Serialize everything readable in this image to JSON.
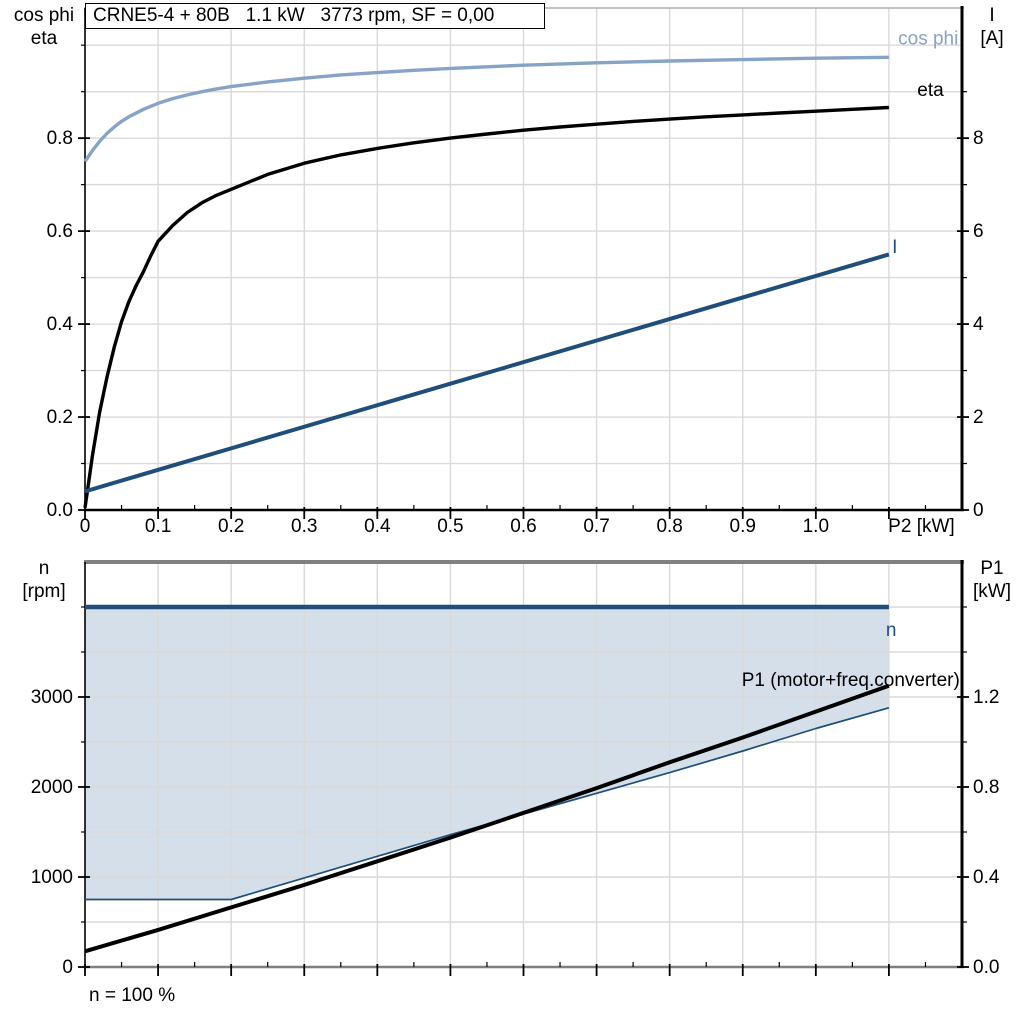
{
  "title_box": {
    "text": "CRNE5-4 + 80B   1.1 kW   3773 rpm, SF = 0,00"
  },
  "axis_corner_labels": {
    "top_left": {
      "line1": "cos phi",
      "line2": "eta"
    },
    "top_right": {
      "line1": "I",
      "line2": "[A]"
    },
    "bottom_left": {
      "line1": "n",
      "line2": "[rpm]"
    },
    "bottom_right": {
      "line1": "P1",
      "line2": "[kW]"
    }
  },
  "annotation": {
    "text": "n = 100 %"
  },
  "colors": {
    "light_blue": "#87A3C5",
    "dark_blue": "#1E4E79",
    "region_fill": "#D4DFEA",
    "grid": "#D9D9D9",
    "gray_border": "#7F7F7F",
    "black": "#000000"
  },
  "chart_data": [
    {
      "type": "line",
      "title": "CRNE5-4 + 80B   1.1 kW   3773 rpm, SF = 0,00",
      "xlabel": "P2 [kW]",
      "ylabel_left": "cos phi / eta",
      "ylabel_right": "I [A]",
      "x_range": [
        0,
        1.2
      ],
      "yl_range": [
        0,
        1.08
      ],
      "yr_range": [
        0,
        10.8
      ],
      "grid_color": "#D9D9D9",
      "grid_x": [
        0.1,
        0.2,
        0.3,
        0.4,
        0.5,
        0.6,
        0.7,
        0.8,
        0.9,
        1.0,
        1.1
      ],
      "grid_yl": [
        0.1,
        0.2,
        0.3,
        0.4,
        0.5,
        0.6,
        0.7,
        0.8,
        0.9,
        1.0
      ],
      "ticks": {
        "x_major": {
          "values": [
            0,
            0.1,
            0.2,
            0.3,
            0.4,
            0.5,
            0.6,
            0.7,
            0.8,
            0.9,
            1.0,
            1.1
          ],
          "labels": [
            "0",
            "0.1",
            "0.2",
            "0.3",
            "0.4",
            "0.5",
            "0.6",
            "0.7",
            "0.8",
            "0.9",
            "1.0",
            ""
          ]
        },
        "x_minor": [
          0.05,
          0.15,
          0.25,
          0.35,
          0.45,
          0.55,
          0.65,
          0.75,
          0.85,
          0.95,
          1.05,
          1.15
        ],
        "yl_major": {
          "values": [
            0,
            0.2,
            0.4,
            0.6,
            0.8
          ],
          "labels": [
            "0.0",
            "0.2",
            "0.4",
            "0.6",
            "0.8"
          ]
        },
        "yl_minor": [
          0.1,
          0.3,
          0.5,
          0.7,
          0.9,
          1.0
        ],
        "yr_major": {
          "values": [
            0,
            2,
            4,
            6,
            8
          ],
          "labels": [
            "0",
            "2",
            "4",
            "6",
            "8"
          ]
        },
        "yr_minor": [
          1,
          3,
          5,
          7,
          9
        ]
      },
      "series": [
        {
          "name": "cos phi",
          "axis": "left",
          "color": "#87A3C5",
          "width": 3.4,
          "points": [
            [
              0,
              0.75
            ],
            [
              0.01,
              0.773
            ],
            [
              0.02,
              0.793
            ],
            [
              0.03,
              0.81
            ],
            [
              0.04,
              0.824
            ],
            [
              0.05,
              0.836
            ],
            [
              0.06,
              0.846
            ],
            [
              0.08,
              0.862
            ],
            [
              0.1,
              0.875
            ],
            [
              0.12,
              0.885
            ],
            [
              0.14,
              0.893
            ],
            [
              0.16,
              0.9
            ],
            [
              0.18,
              0.906
            ],
            [
              0.2,
              0.911
            ],
            [
              0.25,
              0.921
            ],
            [
              0.3,
              0.929
            ],
            [
              0.35,
              0.936
            ],
            [
              0.4,
              0.941
            ],
            [
              0.45,
              0.946
            ],
            [
              0.5,
              0.95
            ],
            [
              0.6,
              0.957
            ],
            [
              0.7,
              0.962
            ],
            [
              0.8,
              0.966
            ],
            [
              0.9,
              0.969
            ],
            [
              1.0,
              0.972
            ],
            [
              1.1,
              0.974
            ]
          ]
        },
        {
          "name": "eta",
          "axis": "left",
          "color": "#000000",
          "width": 3.4,
          "points": [
            [
              0,
              0.005
            ],
            [
              0.005,
              0.06
            ],
            [
              0.01,
              0.115
            ],
            [
              0.02,
              0.21
            ],
            [
              0.03,
              0.285
            ],
            [
              0.04,
              0.35
            ],
            [
              0.05,
              0.405
            ],
            [
              0.06,
              0.448
            ],
            [
              0.07,
              0.483
            ],
            [
              0.08,
              0.513
            ],
            [
              0.09,
              0.547
            ],
            [
              0.1,
              0.578
            ],
            [
              0.12,
              0.612
            ],
            [
              0.14,
              0.64
            ],
            [
              0.16,
              0.661
            ],
            [
              0.18,
              0.677
            ],
            [
              0.2,
              0.69
            ],
            [
              0.25,
              0.722
            ],
            [
              0.3,
              0.746
            ],
            [
              0.35,
              0.764
            ],
            [
              0.4,
              0.778
            ],
            [
              0.45,
              0.79
            ],
            [
              0.5,
              0.8
            ],
            [
              0.55,
              0.809
            ],
            [
              0.6,
              0.817
            ],
            [
              0.65,
              0.824
            ],
            [
              0.7,
              0.83
            ],
            [
              0.75,
              0.836
            ],
            [
              0.8,
              0.841
            ],
            [
              0.85,
              0.846
            ],
            [
              0.9,
              0.85
            ],
            [
              0.95,
              0.854
            ],
            [
              1.0,
              0.858
            ],
            [
              1.05,
              0.862
            ],
            [
              1.1,
              0.866
            ]
          ]
        },
        {
          "name": "I",
          "axis": "right",
          "color": "#1E4E79",
          "width": 4,
          "points": [
            [
              0,
              0.4
            ],
            [
              1.1,
              5.5
            ]
          ]
        }
      ],
      "labels": [
        {
          "text": "cos phi",
          "x": 1.195,
          "y": 1.002,
          "axis": "left",
          "anchor": "end",
          "color": "#87A3C5"
        },
        {
          "text": "eta",
          "x": 1.175,
          "y": 0.891,
          "axis": "left",
          "anchor": "end",
          "color": "#000000"
        },
        {
          "text": "I",
          "x": 1.108,
          "y": 5.53,
          "axis": "right",
          "anchor": "middle",
          "color": "#1E4E79"
        },
        {
          "text": "P2 [kW]",
          "x": 1.19,
          "y": -0.047,
          "axis": "left",
          "anchor": "end",
          "color": "#000000"
        }
      ]
    },
    {
      "type": "line",
      "title": "",
      "xlabel": "",
      "ylabel_left": "n [rpm]",
      "ylabel_right": "P1 [kW]",
      "x_range": [
        0,
        1.2
      ],
      "yl_range": [
        0,
        4500
      ],
      "yr_range": [
        0,
        1.8
      ],
      "grid_color": "#D9D9D9",
      "grid_x": [
        0.1,
        0.2,
        0.3,
        0.4,
        0.5,
        0.6,
        0.7,
        0.8,
        0.9,
        1.0,
        1.1
      ],
      "grid_yl": [
        500,
        1000,
        1500,
        2000,
        2500,
        3000,
        3500,
        4000
      ],
      "ticks": {
        "x_major": {
          "values": [
            0,
            0.1,
            0.2,
            0.3,
            0.4,
            0.5,
            0.6,
            0.7,
            0.8,
            0.9,
            1.0,
            1.1
          ],
          "labels": [
            "",
            "",
            "",
            "",
            "",
            "",
            "",
            "",
            "",
            "",
            "",
            ""
          ]
        },
        "x_minor": [
          0.05,
          0.15,
          0.25,
          0.35,
          0.45,
          0.55,
          0.65,
          0.75,
          0.85,
          0.95,
          1.05,
          1.15
        ],
        "yl_major": {
          "values": [
            0,
            1000,
            2000,
            3000
          ],
          "labels": [
            "0",
            "1000",
            "2000",
            "3000"
          ]
        },
        "yl_minor": [
          500,
          1500,
          2500,
          3500,
          4000
        ],
        "yr_major": {
          "values": [
            0,
            0.4,
            0.8,
            1.2
          ],
          "labels": [
            "0.0",
            "0.4",
            "0.8",
            "1.2"
          ]
        },
        "yr_minor": [
          0.2,
          0.6,
          1.0,
          1.4,
          1.6
        ]
      },
      "areas": [
        {
          "name": "speed-control-range",
          "axis": "left",
          "fill": "#D4DFEA",
          "upper": [
            [
              0,
              4000
            ],
            [
              1.1,
              4000
            ]
          ],
          "lower": [
            [
              0,
              750
            ],
            [
              0.2,
              750
            ],
            [
              0.3,
              990
            ],
            [
              0.4,
              1230
            ],
            [
              0.5,
              1470
            ],
            [
              0.6,
              1700
            ],
            [
              0.7,
              1930
            ],
            [
              0.8,
              2160
            ],
            [
              0.9,
              2400
            ],
            [
              1.0,
              2650
            ],
            [
              1.1,
              2880
            ]
          ]
        }
      ],
      "series": [
        {
          "name": "n range lower boundary",
          "axis": "left",
          "color": "#1E4E79",
          "width": 1.7,
          "points": [
            [
              0,
              750
            ],
            [
              0.2,
              750
            ],
            [
              0.3,
              990
            ],
            [
              0.4,
              1230
            ],
            [
              0.5,
              1470
            ],
            [
              0.6,
              1700
            ],
            [
              0.7,
              1930
            ],
            [
              0.8,
              2160
            ],
            [
              0.9,
              2400
            ],
            [
              1.0,
              2650
            ],
            [
              1.1,
              2880
            ]
          ]
        },
        {
          "name": "n",
          "axis": "left",
          "color": "#1E4E79",
          "width": 4.5,
          "points": [
            [
              0,
              4000
            ],
            [
              1.1,
              4000
            ]
          ]
        },
        {
          "name": "P1 (motor+freq.converter)",
          "axis": "right",
          "color": "#000000",
          "width": 4,
          "points": [
            [
              0,
              0.07
            ],
            [
              0.1,
              0.165
            ],
            [
              0.2,
              0.265
            ],
            [
              0.3,
              0.365
            ],
            [
              0.4,
              0.47
            ],
            [
              0.5,
              0.575
            ],
            [
              0.6,
              0.685
            ],
            [
              0.7,
              0.795
            ],
            [
              0.8,
              0.91
            ],
            [
              0.9,
              1.02
            ],
            [
              1.0,
              1.135
            ],
            [
              1.1,
              1.25
            ]
          ]
        }
      ],
      "labels": [
        {
          "text": "n",
          "x": 1.103,
          "y": 3678,
          "axis": "left",
          "anchor": "middle",
          "color": "#1E4E79"
        },
        {
          "text": "P1 (motor+freq.converter)",
          "x": 1.197,
          "y": 1.25,
          "axis": "right",
          "anchor": "end",
          "color": "#000000"
        }
      ],
      "annotation": "n = 100 %"
    }
  ]
}
